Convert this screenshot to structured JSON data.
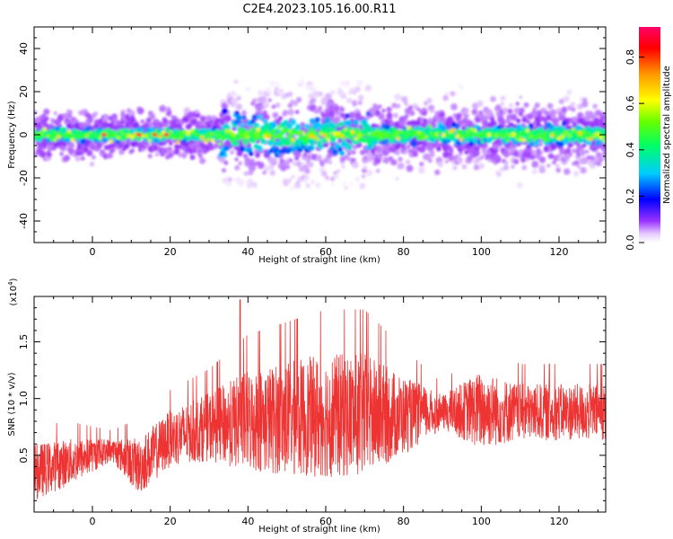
{
  "title": "C2E4.2023.105.16.00.R11",
  "chart_data": [
    {
      "type": "heatmap",
      "name": "spectrogram",
      "xlabel": "Height of straight line (km)",
      "ylabel": "Frequency (Hz)",
      "xlim": [
        -15,
        132
      ],
      "ylim": [
        -50,
        50
      ],
      "x_ticks": [
        "0",
        "20",
        "40",
        "60",
        "80",
        "100",
        "120"
      ],
      "x_tick_values": [
        0,
        20,
        40,
        60,
        80,
        100,
        120
      ],
      "y_ticks": [
        "40",
        "20",
        "0",
        "-20",
        "-40"
      ],
      "y_tick_values": [
        40,
        20,
        0,
        -20,
        -40
      ],
      "colorbar_label": "Normalized spectral amplitude",
      "colorbar_range": [
        0,
        0.93
      ],
      "colorbar_ticks": [
        "0.0",
        "0.2",
        "0.4",
        "0.6",
        "0.8"
      ],
      "colorbar_tick_values": [
        0,
        0.2,
        0.4,
        0.6,
        0.8
      ],
      "band_center_hz": 0,
      "band_halfwidth_hz": {
        "x_-15_to_32": 4,
        "x_33_to_72": 12,
        "x_73_to_132": 6
      },
      "energy_spread_max_hz": 25
    },
    {
      "type": "line",
      "name": "snr",
      "xlabel": "Height of straight line (km)",
      "ylabel": "SNR (10 * v/v)",
      "y_multiplier": "(x10⁴)",
      "y_multiplier_base": "(x10",
      "y_multiplier_exp": "4",
      "y_multiplier_close": ")",
      "color": "#EE3333",
      "xlim": [
        -15,
        132
      ],
      "ylim": [
        0,
        1.9
      ],
      "x_ticks": [
        "0",
        "20",
        "40",
        "60",
        "80",
        "100",
        "120"
      ],
      "x_tick_values": [
        0,
        20,
        40,
        60,
        80,
        100,
        120
      ],
      "y_ticks": [
        "0.5",
        "1.0",
        "1.5"
      ],
      "y_tick_values": [
        0.5,
        1.0,
        1.5
      ],
      "envelope": [
        {
          "x": -15,
          "mean": 0.35,
          "amp": 0.25
        },
        {
          "x": -5,
          "mean": 0.45,
          "amp": 0.2
        },
        {
          "x": 5,
          "mean": 0.55,
          "amp": 0.1
        },
        {
          "x": 12,
          "mean": 0.4,
          "amp": 0.25
        },
        {
          "x": 20,
          "mean": 0.65,
          "amp": 0.25
        },
        {
          "x": 30,
          "mean": 0.75,
          "amp": 0.3
        },
        {
          "x": 40,
          "mean": 0.8,
          "amp": 0.45
        },
        {
          "x": 60,
          "mean": 0.85,
          "amp": 0.55
        },
        {
          "x": 70,
          "mean": 0.85,
          "amp": 0.55
        },
        {
          "x": 80,
          "mean": 0.85,
          "amp": 0.35
        },
        {
          "x": 90,
          "mean": 0.88,
          "amp": 0.15
        },
        {
          "x": 100,
          "mean": 0.9,
          "amp": 0.35
        },
        {
          "x": 110,
          "mean": 0.88,
          "amp": 0.25
        },
        {
          "x": 132,
          "mean": 0.88,
          "amp": 0.25
        }
      ],
      "peak_max": 1.87,
      "peak_max_x": 38
    }
  ]
}
